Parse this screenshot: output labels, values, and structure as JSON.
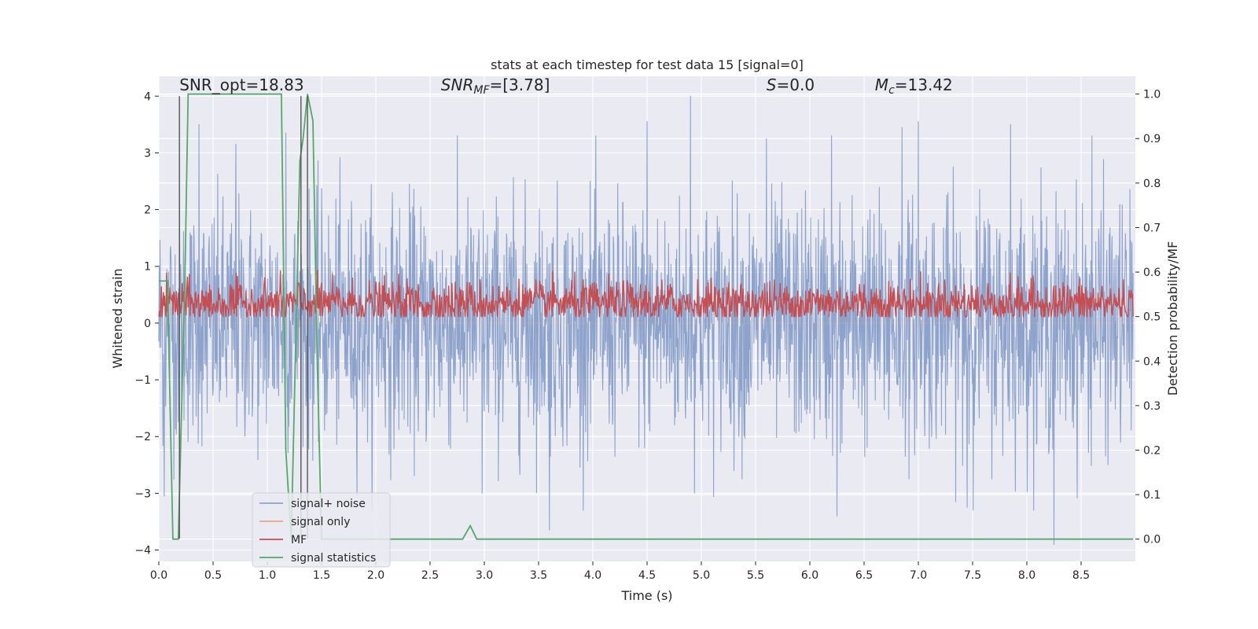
{
  "chart_data": {
    "type": "line",
    "title": "stats at each timestep for test data 15 [signal=0]",
    "xlabel": "Time (s)",
    "ylabel_left": "Whitened strain",
    "ylabel_right": "Detection probability/MF",
    "xlim": [
      0,
      9.0
    ],
    "ylim_left": [
      -4.2,
      4.35
    ],
    "ylim_right": [
      -0.05,
      1.04
    ],
    "x_ticks": [
      0.0,
      0.5,
      1.0,
      1.5,
      2.0,
      2.5,
      3.0,
      3.5,
      4.0,
      4.5,
      5.0,
      5.5,
      6.0,
      6.5,
      7.0,
      7.5,
      8.0,
      8.5
    ],
    "x_tick_labels": [
      "0.0",
      "0.5",
      "1.0",
      "1.5",
      "2.0",
      "2.5",
      "3.0",
      "3.5",
      "4.0",
      "4.5",
      "5.0",
      "5.5",
      "6.0",
      "6.5",
      "7.0",
      "7.5",
      "8.0",
      "8.5"
    ],
    "y_left_ticks": [
      -4,
      -3,
      -2,
      -1,
      0,
      1,
      2,
      3,
      4
    ],
    "y_left_tick_labels": [
      "−4",
      "−3",
      "−2",
      "−1",
      "0",
      "1",
      "2",
      "3",
      "4"
    ],
    "y_right_ticks": [
      0.0,
      0.1,
      0.2,
      0.3,
      0.4,
      0.5,
      0.6,
      0.7,
      0.8,
      0.9,
      1.0
    ],
    "y_right_tick_labels": [
      "0.0",
      "0.1",
      "0.2",
      "0.3",
      "0.4",
      "0.5",
      "0.6",
      "0.7",
      "0.8",
      "0.9",
      "1.0"
    ],
    "grid": true,
    "legend_placement": "lower-left",
    "annotations": [
      {
        "text": "SNR_opt=18.83",
        "x": 0.19,
        "y": 4.1,
        "italic": false
      },
      {
        "text": "SNR_MF=[3.78]",
        "x": 2.6,
        "y": 4.1,
        "italic": true
      },
      {
        "text": "S=0.0",
        "x": 5.6,
        "y": 4.1,
        "italic": true
      },
      {
        "text": "M_c=13.42",
        "x": 6.6,
        "y": 4.1,
        "italic": true
      }
    ],
    "vertical_lines": [
      {
        "x": 0.19,
        "y_from": -3.8,
        "y_to": 4.0,
        "color": "#555555"
      },
      {
        "x": 1.31,
        "y_from": -3.8,
        "y_to": 4.0,
        "color": "#555555"
      },
      {
        "x": 1.37,
        "y_from": -3.8,
        "y_to": 4.0,
        "color": "#555555"
      }
    ],
    "series": [
      {
        "name": "signal+ noise",
        "axis": "left",
        "color": "#8ea3cc",
        "kind": "noise",
        "t_start": 0.0,
        "t_end": 8.98,
        "samples": 2400,
        "sigma": 1.05,
        "peaks": [
          {
            "x": 0.05,
            "y": 2.95
          },
          {
            "x": 0.37,
            "y": 3.5
          },
          {
            "x": 0.71,
            "y": 3.15
          },
          {
            "x": 1.17,
            "y": 3.35
          },
          {
            "x": 4.9,
            "y": 4.0
          },
          {
            "x": 5.6,
            "y": 3.25
          },
          {
            "x": 6.85,
            "y": 3.45
          },
          {
            "x": 7.0,
            "y": 3.55
          },
          {
            "x": 7.85,
            "y": 3.5
          },
          {
            "x": 4.5,
            "y": 3.55
          },
          {
            "x": 8.6,
            "y": 3.3
          },
          {
            "x": 6.2,
            "y": 3.3
          },
          {
            "x": 3.6,
            "y": -3.65
          },
          {
            "x": 8.25,
            "y": -3.9
          },
          {
            "x": 2.98,
            "y": -3.0
          },
          {
            "x": 6.25,
            "y": -3.4
          },
          {
            "x": 0.05,
            "y": -3.05
          },
          {
            "x": 7.45,
            "y": -3.25
          }
        ]
      },
      {
        "name": "signal only",
        "axis": "left",
        "color": "#e9a48a",
        "kind": "line",
        "x": [
          0.0,
          8.98
        ],
        "y": [
          0.0,
          0.0
        ]
      },
      {
        "name": "MF",
        "axis": "right",
        "color": "#c44e52",
        "kind": "noise",
        "t_start": 0.0,
        "t_end": 8.98,
        "samples": 1500,
        "mean": 0.53,
        "sigma": 0.025,
        "min": 0.5,
        "max": 0.61
      },
      {
        "name": "signal statistics",
        "axis": "right",
        "color": "#55a868",
        "kind": "line",
        "x": [
          0.0,
          0.05,
          0.08,
          0.13,
          0.18,
          0.24,
          0.27,
          0.8,
          1.13,
          1.17,
          1.22,
          1.3,
          1.33,
          1.37,
          1.42,
          1.46,
          1.5,
          2.0,
          2.8,
          2.87,
          2.93,
          3.5,
          5.0,
          8.98
        ],
        "y": [
          0.58,
          0.58,
          0.58,
          0.0,
          0.0,
          0.58,
          1.0,
          1.0,
          1.0,
          0.2,
          0.0,
          0.85,
          0.9,
          1.0,
          0.94,
          0.4,
          0.0,
          0.0,
          0.0,
          0.03,
          0.0,
          0.0,
          0.0,
          0.0
        ]
      }
    ]
  }
}
